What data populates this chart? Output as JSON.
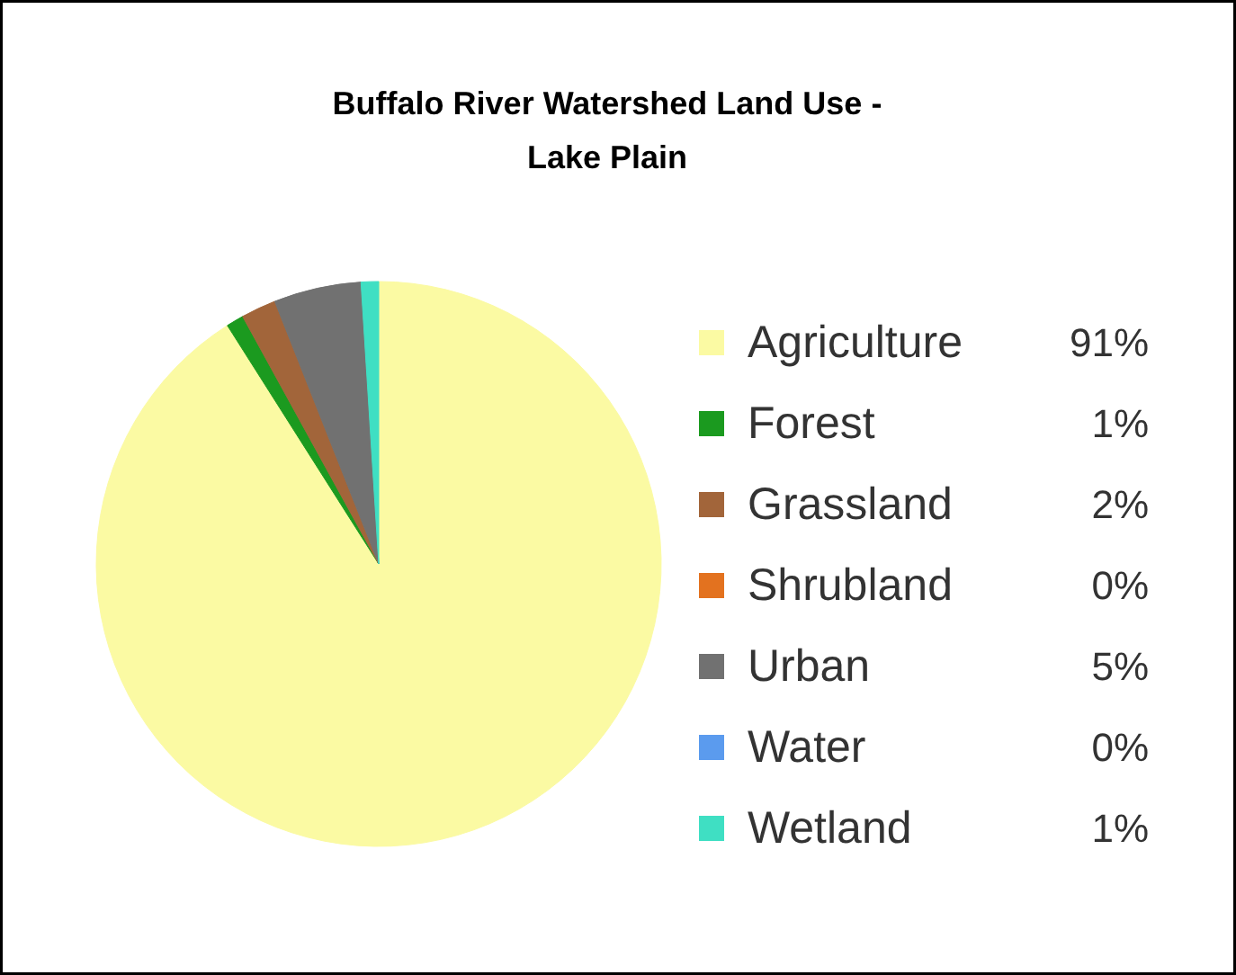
{
  "chart_data": {
    "type": "pie",
    "title": "Buffalo River Watershed Land Use -\nLake Plain",
    "categories": [
      "Agriculture",
      "Forest",
      "Grassland",
      "Shrubland",
      "Urban",
      "Water",
      "Wetland"
    ],
    "values": [
      91,
      1,
      2,
      0,
      5,
      0,
      1
    ],
    "value_labels": [
      "91%",
      "1%",
      "2%",
      "0%",
      "5%",
      "0%",
      "1%"
    ],
    "colors": [
      "#fbfaa3",
      "#1b9a1f",
      "#a2653a",
      "#e3721f",
      "#717171",
      "#5b9bee",
      "#3fdfc3"
    ],
    "legend": "right"
  }
}
